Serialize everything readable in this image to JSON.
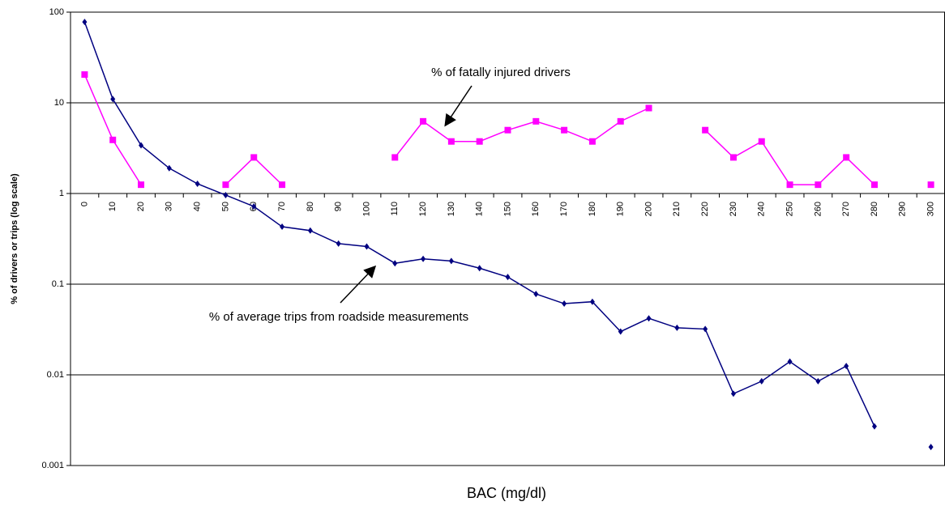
{
  "chart_data": {
    "type": "line",
    "x_label": "BAC (mg/dl)",
    "y_label": "% of drivers or trips (log scale)",
    "annotations": [
      "% of fatally injured drivers",
      "% of average trips from roadside measurements"
    ],
    "categories": [
      "0",
      "10",
      "20",
      "30",
      "40",
      "50",
      "60",
      "70",
      "80",
      "90",
      "100",
      "110",
      "120",
      "130",
      "140",
      "150",
      "160",
      "170",
      "180",
      "190",
      "200",
      "210",
      "220",
      "230",
      "240",
      "250",
      "260",
      "270",
      "280",
      "290",
      "300"
    ],
    "series": [
      {
        "color": "#ff00ff",
        "marker": "square",
        "values": [
          20.5,
          3.9,
          1.25,
          null,
          null,
          1.25,
          2.5,
          1.25,
          null,
          null,
          null,
          2.5,
          6.25,
          3.75,
          3.75,
          5,
          6.25,
          5,
          3.75,
          6.25,
          8.75,
          null,
          5,
          2.5,
          3.75,
          1.25,
          1.25,
          2.5,
          1.25,
          null,
          1.25
        ]
      },
      {
        "color": "#000080",
        "marker": "diamond",
        "values": [
          78,
          11,
          3.4,
          1.9,
          1.28,
          0.96,
          0.72,
          0.43,
          0.39,
          0.28,
          0.26,
          0.17,
          0.19,
          0.18,
          0.15,
          0.12,
          0.078,
          0.061,
          0.064,
          0.03,
          0.042,
          0.033,
          0.032,
          0.0062,
          0.0085,
          0.014,
          0.0085,
          0.0125,
          0.0027,
          null,
          0.0016
        ]
      }
    ],
    "log_y": true,
    "ylim": [
      0.001,
      100
    ],
    "yticks": [
      0.001,
      0.01,
      0.1,
      1,
      10,
      100
    ],
    "category_axis_at": 1,
    "grid": true
  }
}
